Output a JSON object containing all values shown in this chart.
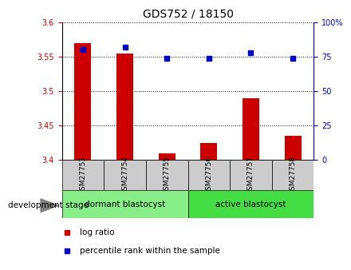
{
  "title": "GDS752 / 18150",
  "samples": [
    "GSM27753",
    "GSM27754",
    "GSM27755",
    "GSM27756",
    "GSM27757",
    "GSM27758"
  ],
  "log_ratio": [
    3.57,
    3.555,
    3.41,
    3.425,
    3.49,
    3.435
  ],
  "percentile_rank": [
    80,
    82,
    74,
    74,
    78,
    74
  ],
  "ylim_left": [
    3.4,
    3.6
  ],
  "ylim_right": [
    0,
    100
  ],
  "yticks_left": [
    3.4,
    3.45,
    3.5,
    3.55,
    3.6
  ],
  "yticks_right": [
    0,
    25,
    50,
    75,
    100
  ],
  "bar_color": "#cc0000",
  "dot_color": "#0000cc",
  "bar_width": 0.4,
  "groups": [
    {
      "label": "dormant blastocyst",
      "samples": [
        "GSM27753",
        "GSM27754",
        "GSM27755"
      ],
      "color": "#88ee88"
    },
    {
      "label": "active blastocyst",
      "samples": [
        "GSM27756",
        "GSM27757",
        "GSM27758"
      ],
      "color": "#44dd44"
    }
  ],
  "bottom_label": "development stage",
  "legend_items": [
    {
      "label": "log ratio",
      "color": "#cc0000"
    },
    {
      "label": "percentile rank within the sample",
      "color": "#0000cc"
    }
  ],
  "grid_color": "black",
  "background_color": "#ffffff",
  "plot_bg_color": "#ffffff",
  "tick_label_color_left": "#cc0000",
  "tick_label_color_right": "#0000cc",
  "sample_box_color": "#cccccc",
  "title_fontsize": 10,
  "axis_fontsize": 7,
  "legend_fontsize": 7.5
}
